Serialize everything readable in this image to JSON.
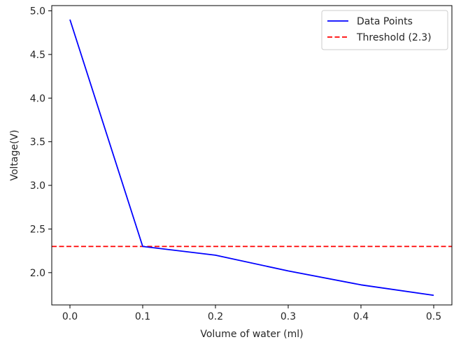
{
  "chart_data": {
    "type": "line",
    "title": "",
    "xlabel": "Volume of water (ml)",
    "ylabel": "Voltage(V)",
    "xlim": [
      -0.025,
      0.525
    ],
    "ylim": [
      1.63,
      5.06
    ],
    "xticks": [
      0.0,
      0.1,
      0.2,
      0.3,
      0.4,
      0.5
    ],
    "xtick_labels": [
      "0.0",
      "0.1",
      "0.2",
      "0.3",
      "0.4",
      "0.5"
    ],
    "yticks": [
      2.0,
      2.5,
      3.0,
      3.5,
      4.0,
      4.5,
      5.0
    ],
    "ytick_labels": [
      "2.0",
      "2.5",
      "3.0",
      "3.5",
      "4.0",
      "4.5",
      "5.0"
    ],
    "grid": false,
    "legend_position": "top-right",
    "series": [
      {
        "name": "Data Points",
        "color": "#0000ff",
        "style": "solid",
        "x": [
          0.0,
          0.1,
          0.2,
          0.3,
          0.4,
          0.5
        ],
        "y": [
          4.9,
          2.3,
          2.2,
          2.02,
          1.86,
          1.74
        ]
      }
    ],
    "hlines": [
      {
        "name": "Threshold (2.3)",
        "y": 2.3,
        "color": "#ff0000",
        "style": "dashed"
      }
    ]
  }
}
